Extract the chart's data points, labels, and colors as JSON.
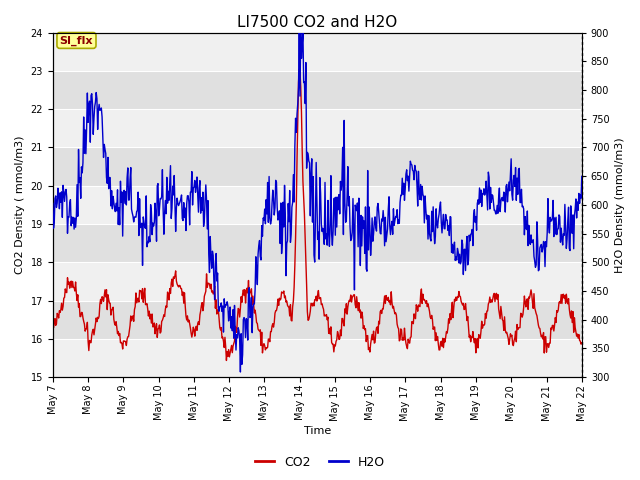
{
  "title": "LI7500 CO2 and H2O",
  "xlabel": "Time",
  "ylabel_left": "CO2 Density ( mmol/m3)",
  "ylabel_right": "H2O Density (mmol/m3)",
  "ylim_left": [
    15.0,
    24.0
  ],
  "ylim_right": [
    300,
    900
  ],
  "yticks_left": [
    15.0,
    16.0,
    17.0,
    18.0,
    19.0,
    20.0,
    21.0,
    22.0,
    23.0,
    24.0
  ],
  "yticks_right": [
    300,
    350,
    400,
    450,
    500,
    550,
    600,
    650,
    700,
    750,
    800,
    850,
    900
  ],
  "xtick_labels": [
    "May 7",
    "May 8",
    "May 9",
    "May 10",
    "May 11",
    "May 12",
    "May 13",
    "May 14",
    "May 15",
    "May 16",
    "May 17",
    "May 18",
    "May 19",
    "May 20",
    "May 21",
    "May 22"
  ],
  "co2_color": "#cc0000",
  "h2o_color": "#0000cc",
  "legend_co2": "CO2",
  "legend_h2o": "H2O",
  "annotation_text": "SI_flx",
  "bg_color": "#ffffff",
  "plot_bg_dark": "#e0e0e0",
  "plot_bg_light": "#f0f0f0",
  "grid_color": "#ffffff",
  "title_fontsize": 11,
  "label_fontsize": 8,
  "tick_fontsize": 7,
  "line_width": 1.0,
  "figsize": [
    6.4,
    4.8
  ],
  "dpi": 100
}
